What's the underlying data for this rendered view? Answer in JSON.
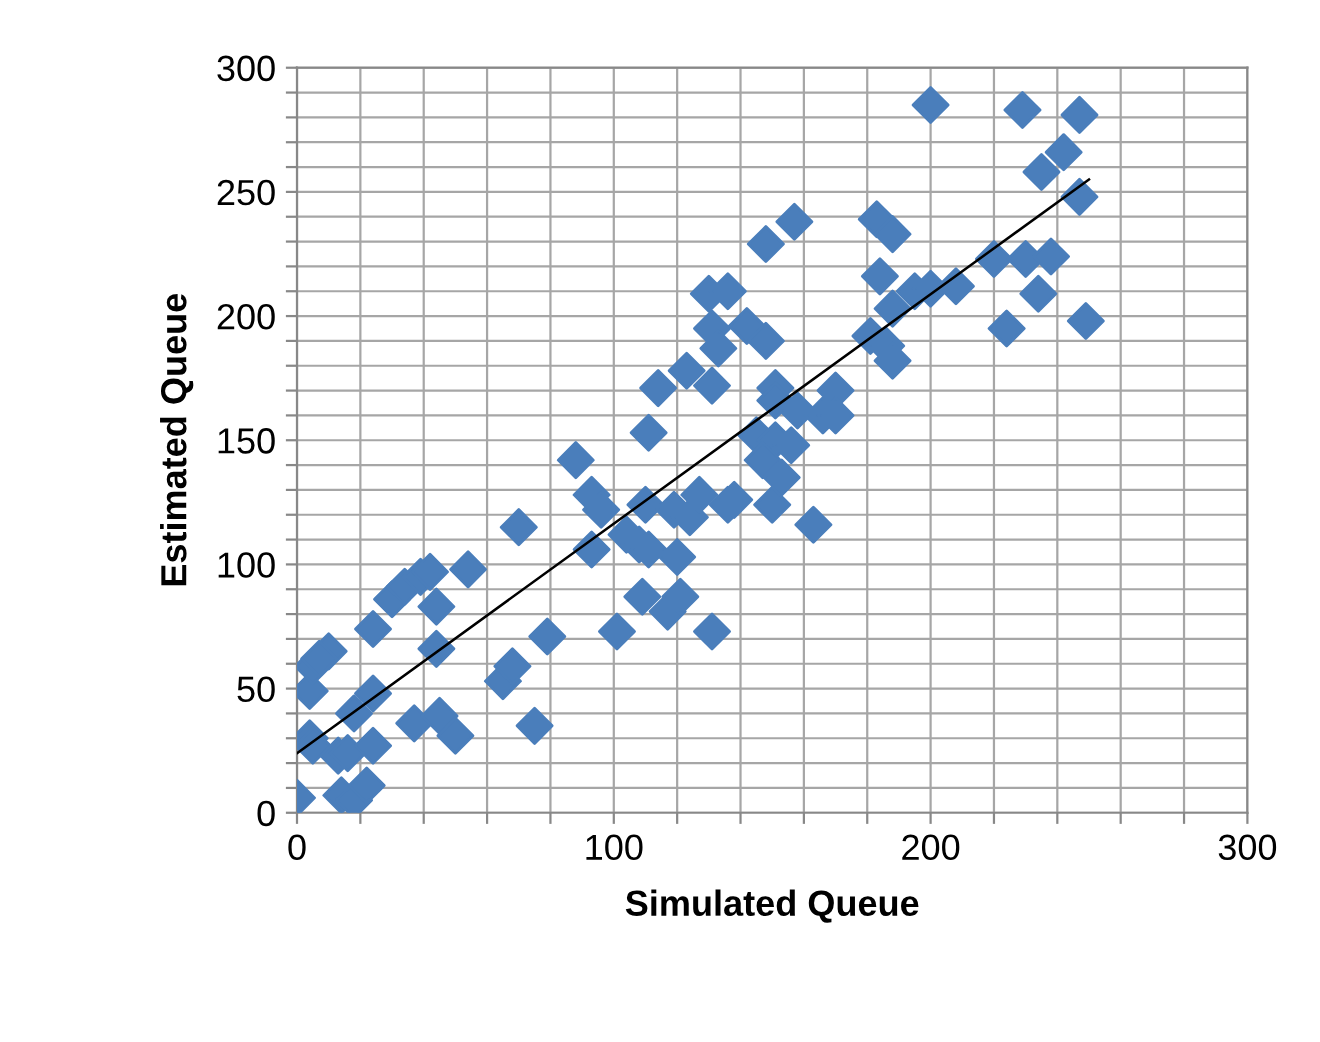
{
  "chart_data": {
    "type": "scatter",
    "xlabel": "Simulated Queue",
    "ylabel": "Estimated Queue",
    "xlim": [
      0,
      300
    ],
    "ylim": [
      0,
      300
    ],
    "xticks": [
      0,
      {
        "value": 20,
        "label": null
      },
      {
        "value": 40,
        "label": null
      },
      {
        "value": 60,
        "label": null
      },
      {
        "value": 80,
        "label": null
      },
      100,
      {
        "value": 120,
        "label": null
      },
      {
        "value": 140,
        "label": null
      },
      {
        "value": 160,
        "label": null
      },
      {
        "value": 180,
        "label": null
      },
      200,
      {
        "value": 220,
        "label": null
      },
      {
        "value": 240,
        "label": null
      },
      {
        "value": 260,
        "label": null
      },
      {
        "value": 280,
        "label": null
      },
      300
    ],
    "yticks": [
      0,
      {
        "value": 10,
        "label": null
      },
      {
        "value": 20,
        "label": null
      },
      {
        "value": 30,
        "label": null
      },
      {
        "value": 40,
        "label": null
      },
      50,
      {
        "value": 60,
        "label": null
      },
      {
        "value": 70,
        "label": null
      },
      {
        "value": 80,
        "label": null
      },
      {
        "value": 90,
        "label": null
      },
      100,
      {
        "value": 110,
        "label": null
      },
      {
        "value": 120,
        "label": null
      },
      {
        "value": 130,
        "label": null
      },
      {
        "value": 140,
        "label": null
      },
      150,
      {
        "value": 160,
        "label": null
      },
      {
        "value": 170,
        "label": null
      },
      {
        "value": 180,
        "label": null
      },
      {
        "value": 190,
        "label": null
      },
      200,
      {
        "value": 210,
        "label": null
      },
      {
        "value": 220,
        "label": null
      },
      {
        "value": 230,
        "label": null
      },
      {
        "value": 240,
        "label": null
      },
      250,
      {
        "value": 260,
        "label": null
      },
      {
        "value": 270,
        "label": null
      },
      {
        "value": 280,
        "label": null
      },
      {
        "value": 290,
        "label": null
      },
      300
    ],
    "grid": true,
    "marker": "diamond",
    "series": [
      {
        "color": "#4a7ebb",
        "x": [
          0,
          14,
          18,
          22,
          4,
          5,
          13,
          16,
          24,
          18,
          24,
          4,
          5,
          10,
          7,
          24,
          30,
          34,
          39,
          42,
          44,
          54,
          44,
          37,
          45,
          50,
          65,
          68,
          75,
          79,
          70,
          88,
          93,
          96,
          93,
          101,
          104,
          108,
          111,
          109,
          110,
          117,
          121,
          120,
          119,
          124,
          127,
          136,
          138,
          131,
          111,
          114,
          123,
          131,
          131,
          133,
          130,
          136,
          148,
          157,
          142,
          148,
          151,
          151,
          145,
          151,
          156,
          147,
          153,
          150,
          163,
          158,
          166,
          170,
          170,
          183,
          188,
          184,
          181,
          186,
          188,
          188,
          195,
          200,
          208,
          200,
          220,
          224,
          229,
          230,
          238,
          234,
          235,
          242,
          247,
          247,
          249
        ],
        "values": [
          6,
          7,
          5,
          11,
          30,
          27,
          23,
          24,
          27,
          40,
          48,
          49,
          59,
          65,
          62,
          74,
          86,
          91,
          95,
          97,
          83,
          98,
          66,
          36,
          39,
          31,
          53,
          59,
          35,
          71,
          115,
          142,
          128,
          122,
          106,
          73,
          112,
          108,
          106,
          87,
          124,
          81,
          87,
          103,
          122,
          119,
          128,
          124,
          126,
          73,
          153,
          171,
          178,
          172,
          195,
          187,
          209,
          210,
          229,
          238,
          196,
          190,
          171,
          166,
          152,
          150,
          148,
          142,
          135,
          124,
          116,
          162,
          160,
          170,
          160,
          239,
          233,
          216,
          192,
          188,
          182,
          203,
          210,
          211,
          212,
          285,
          223,
          195,
          283,
          223,
          224,
          209,
          258,
          266,
          281,
          248,
          198
        ]
      },
      {
        "type": "line",
        "color": "#000000",
        "marker": "none",
        "x": [
          0,
          250
        ],
        "values": [
          24,
          255
        ]
      }
    ]
  }
}
